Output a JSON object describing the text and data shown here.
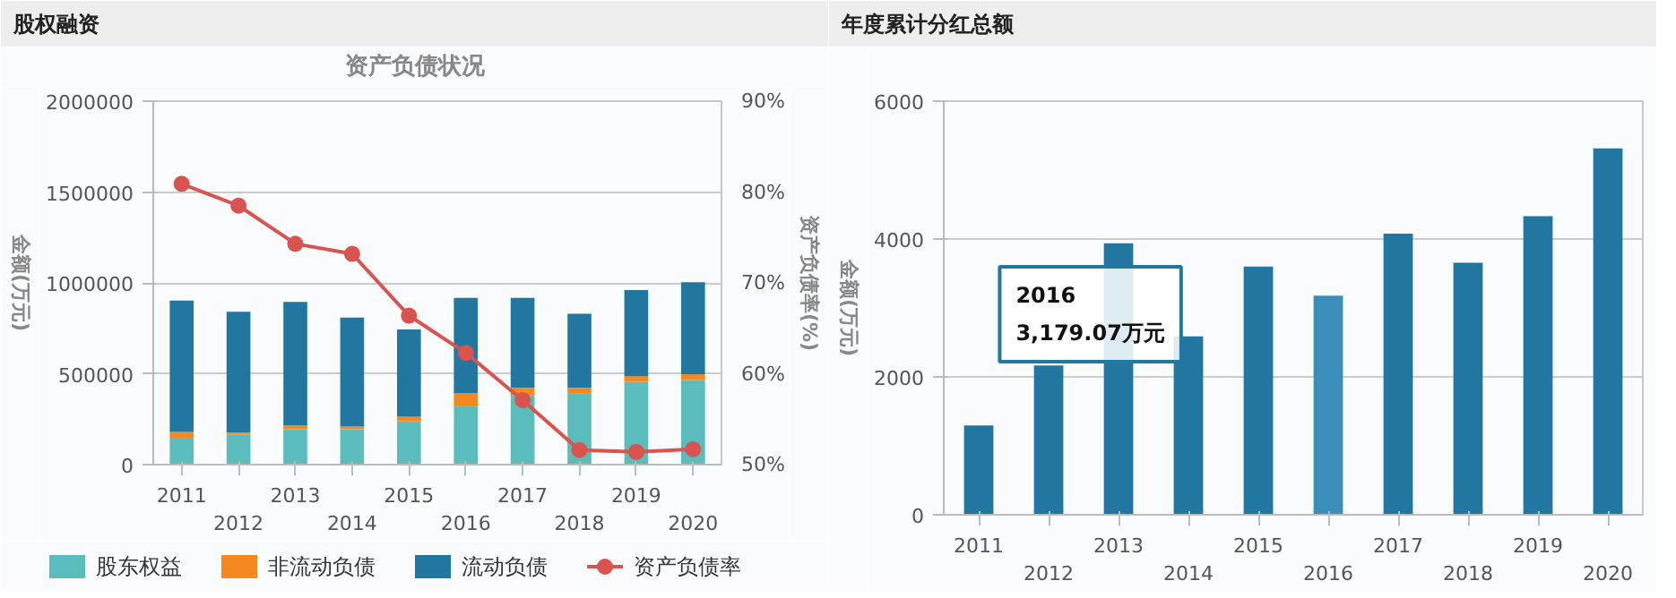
{
  "chart_data": [
    {
      "type": "bar",
      "title": "股权融资",
      "subtitle": "资产负债状况",
      "ylabel": "金额(万元)",
      "y2label": "资产负债率(%)",
      "stacked": true,
      "categories": [
        "2011",
        "2012",
        "2013",
        "2014",
        "2015",
        "2016",
        "2017",
        "2018",
        "2019",
        "2020"
      ],
      "series": [
        {
          "name": "股东权益",
          "color": "#5bbcbc",
          "values": [
            148000,
            166000,
            195000,
            195000,
            238000,
            321000,
            383000,
            390000,
            455000,
            466000
          ]
        },
        {
          "name": "非流动负债",
          "color": "#f5891f",
          "values": [
            32000,
            11000,
            22000,
            14000,
            26000,
            73000,
            39000,
            32000,
            32000,
            32000
          ]
        },
        {
          "name": "流动负债",
          "color": "#2277a0",
          "values": [
            723000,
            664000,
            678000,
            600000,
            480000,
            523000,
            495000,
            408000,
            473000,
            506000
          ]
        },
        {
          "name": "资产负债率",
          "type": "line",
          "axis": "y2",
          "color": "#d9534f",
          "marker": "circle",
          "values": [
            80.9,
            78.5,
            74.3,
            73.2,
            66.4,
            62.3,
            57.1,
            51.6,
            51.4,
            51.7
          ]
        }
      ],
      "ylim": [
        0,
        2000000
      ],
      "yticks": [
        0,
        500000,
        1000000,
        1500000,
        2000000
      ],
      "y2lim": [
        50,
        90
      ],
      "y2ticks": [
        {
          "value": 50,
          "label": "50%"
        },
        {
          "value": 60,
          "label": "60%"
        },
        {
          "value": 70,
          "label": "70%"
        },
        {
          "value": 80,
          "label": "80%"
        },
        {
          "value": 90,
          "label": "90%"
        }
      ],
      "grid": "y",
      "legend": "bottom"
    },
    {
      "type": "bar",
      "title": "年度累计分红总额",
      "ylabel": "金额(万元)",
      "categories": [
        "2011",
        "2012",
        "2013",
        "2014",
        "2015",
        "2016",
        "2017",
        "2018",
        "2019",
        "2020"
      ],
      "values": [
        1294,
        2166,
        3938,
        2588,
        3600,
        3179.07,
        4078,
        3656,
        4331,
        5316
      ],
      "colors": [
        "#2277a0",
        "#2277a0",
        "#2277a0",
        "#2277a0",
        "#2277a0",
        "#3a8fba",
        "#2277a0",
        "#2277a0",
        "#2277a0",
        "#2277a0"
      ],
      "ylim": [
        0,
        6000
      ],
      "yticks": [
        0,
        2000,
        4000,
        6000
      ],
      "grid": "y",
      "annotations": [
        "2016\n3,179.07万元"
      ]
    }
  ]
}
